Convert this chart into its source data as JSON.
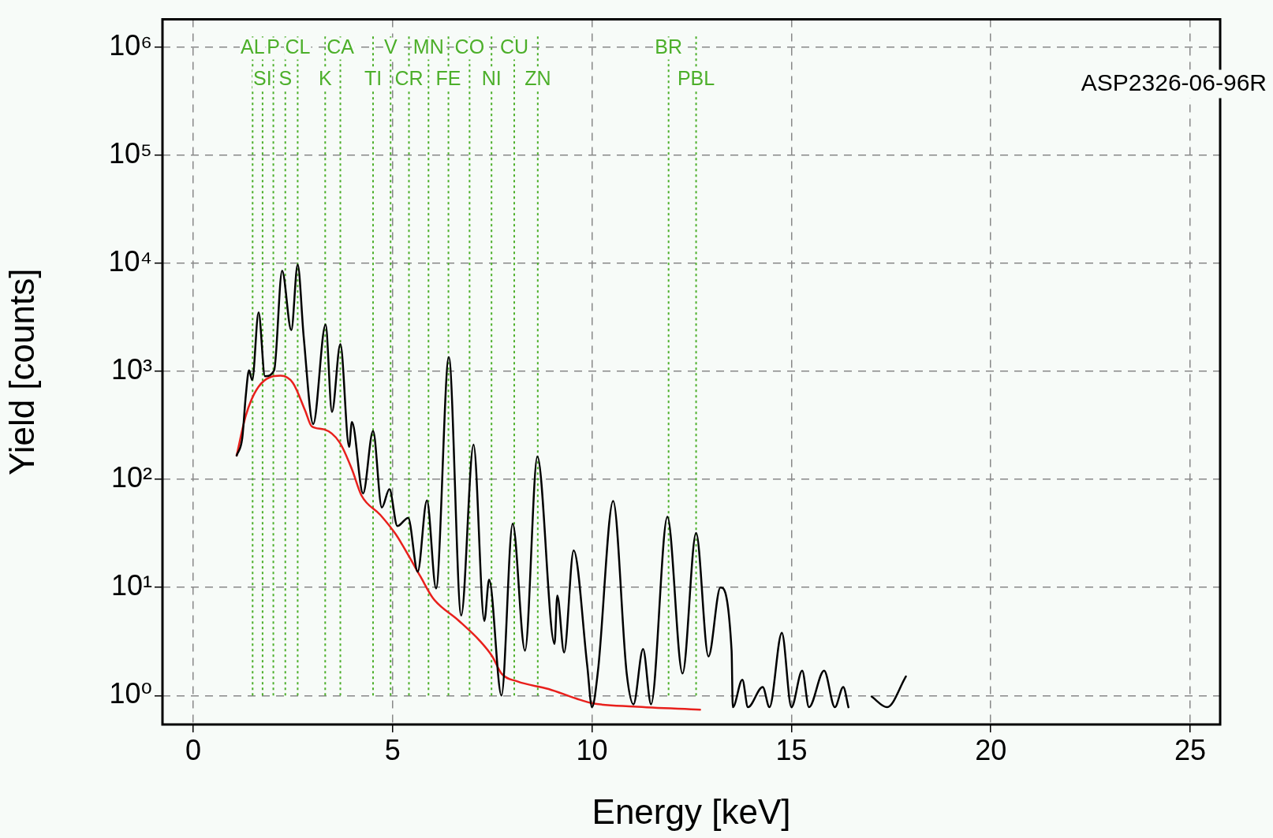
{
  "chart_data": {
    "type": "line",
    "xlabel": "Energy [keV]",
    "ylabel": "Yield [counts]",
    "log": "y",
    "grid": true,
    "xlim": [
      -0.77,
      25.75
    ],
    "xticks": [
      0,
      5,
      10,
      15,
      20,
      25
    ],
    "ylim": [
      0.54,
      1800000
    ],
    "yticks": [
      {
        "value": 1,
        "label": "10⁰"
      },
      {
        "value": 10,
        "label": "10¹"
      },
      {
        "value": 100,
        "label": "10²"
      },
      {
        "value": 1000,
        "label": "10³"
      },
      {
        "value": 10000,
        "label": "10⁴"
      },
      {
        "value": 100000,
        "label": "10⁵"
      },
      {
        "value": 1000000,
        "label": "10⁶"
      }
    ],
    "series": [
      {
        "color": "#000000",
        "x": [
          1.09,
          1.23,
          1.32,
          1.4,
          1.48,
          1.64,
          1.8,
          2.03,
          2.23,
          2.46,
          2.62,
          2.77,
          3.01,
          3.32,
          3.48,
          3.69,
          3.91,
          3.98,
          4.26,
          4.51,
          4.73,
          4.92,
          5.12,
          5.39,
          5.63,
          5.86,
          6.09,
          6.41,
          6.72,
          7.03,
          7.3,
          7.42,
          7.73,
          8.01,
          8.32,
          8.63,
          9.06,
          9.13,
          9.3,
          9.54,
          9.88,
          10.0,
          10.15,
          10.53,
          10.87,
          11.04,
          11.28,
          11.48,
          11.89,
          12.27,
          12.61,
          12.92,
          13.22,
          13.5,
          13.53,
          13.77,
          13.91,
          14.28,
          14.45,
          14.76,
          15.0,
          15.27,
          15.44,
          15.82,
          16.09,
          16.3,
          16.43,
          16.7,
          17.01,
          17.4,
          17.87
        ],
        "values": [
          166,
          240,
          600,
          1020,
          830,
          3500,
          900,
          1020,
          8500,
          2400,
          9700,
          2100,
          325,
          2700,
          420,
          1780,
          200,
          340,
          74,
          280,
          55,
          81,
          37,
          44,
          14,
          64,
          9.8,
          1350,
          5.5,
          210,
          4.9,
          11.8,
          1.0,
          39,
          2.6,
          163,
          3.0,
          8.4,
          2.5,
          22,
          1.9,
          0.78,
          1.7,
          63,
          1.6,
          0.83,
          2.7,
          0.83,
          45,
          1.6,
          32,
          2.3,
          10,
          2.6,
          0.78,
          1.4,
          0.78,
          1.2,
          0.78,
          3.8,
          0.78,
          1.7,
          0.78,
          1.7,
          0.78,
          1.2,
          0.78,
          null,
          0.98,
          0.78,
          1.5
        ]
      },
      {
        "color": "#e8201c",
        "x": [
          1.09,
          1.32,
          1.64,
          2.19,
          2.5,
          2.81,
          2.97,
          3.28,
          3.67,
          3.98,
          4.22,
          4.69,
          5.08,
          5.39,
          5.7,
          6.02,
          6.64,
          7.19,
          7.5,
          7.73,
          8.13,
          8.91,
          9.6,
          10.0,
          11.04,
          12.71
        ],
        "values": [
          166,
          390,
          720,
          910,
          780,
          430,
          310,
          290,
          220,
          124,
          71,
          47,
          31,
          20,
          12.6,
          7.9,
          5.0,
          3.2,
          2.3,
          1.6,
          1.35,
          1.15,
          0.94,
          0.85,
          0.79,
          0.74
        ]
      }
    ],
    "ref_lines": [
      {
        "axis": "x",
        "value": 1.49,
        "label": "AL",
        "color": "#4caf2a",
        "line_style": "dotted"
      },
      {
        "axis": "x",
        "value": 1.74,
        "label": "SI",
        "color": "#4caf2a",
        "line_style": "dotted"
      },
      {
        "axis": "x",
        "value": 2.01,
        "label": "P",
        "color": "#4caf2a",
        "line_style": "dotted"
      },
      {
        "axis": "x",
        "value": 2.31,
        "label": "S",
        "color": "#4caf2a",
        "line_style": "dotted"
      },
      {
        "axis": "x",
        "value": 2.62,
        "label": "CL",
        "color": "#4caf2a",
        "line_style": "dotted"
      },
      {
        "axis": "x",
        "value": 3.31,
        "label": "K",
        "color": "#4caf2a",
        "line_style": "dotted"
      },
      {
        "axis": "x",
        "value": 3.69,
        "label": "CA",
        "color": "#4caf2a",
        "line_style": "dotted"
      },
      {
        "axis": "x",
        "value": 4.51,
        "label": "TI",
        "color": "#4caf2a",
        "line_style": "dotted"
      },
      {
        "axis": "x",
        "value": 4.95,
        "label": "V",
        "color": "#4caf2a",
        "line_style": "dotted"
      },
      {
        "axis": "x",
        "value": 5.41,
        "label": "CR",
        "color": "#4caf2a",
        "line_style": "dotted"
      },
      {
        "axis": "x",
        "value": 5.9,
        "label": "MN",
        "color": "#4caf2a",
        "line_style": "dotted"
      },
      {
        "axis": "x",
        "value": 6.4,
        "label": "FE",
        "color": "#4caf2a",
        "line_style": "dotted"
      },
      {
        "axis": "x",
        "value": 6.93,
        "label": "CO",
        "color": "#4caf2a",
        "line_style": "dotted"
      },
      {
        "axis": "x",
        "value": 7.48,
        "label": "NI",
        "color": "#4caf2a",
        "line_style": "dotted"
      },
      {
        "axis": "x",
        "value": 8.05,
        "label": "CU",
        "color": "#4caf2a",
        "line_style": "dotted"
      },
      {
        "axis": "x",
        "value": 8.64,
        "label": "ZN",
        "color": "#4caf2a",
        "line_style": "dotted"
      },
      {
        "axis": "x",
        "value": 11.92,
        "label": "BR",
        "color": "#4caf2a",
        "line_style": "dotted"
      },
      {
        "axis": "x",
        "value": 12.61,
        "label": "PBL",
        "color": "#4caf2a",
        "line_style": "dotted"
      }
    ],
    "annotations": [
      "ASP2326-06-96R"
    ]
  }
}
